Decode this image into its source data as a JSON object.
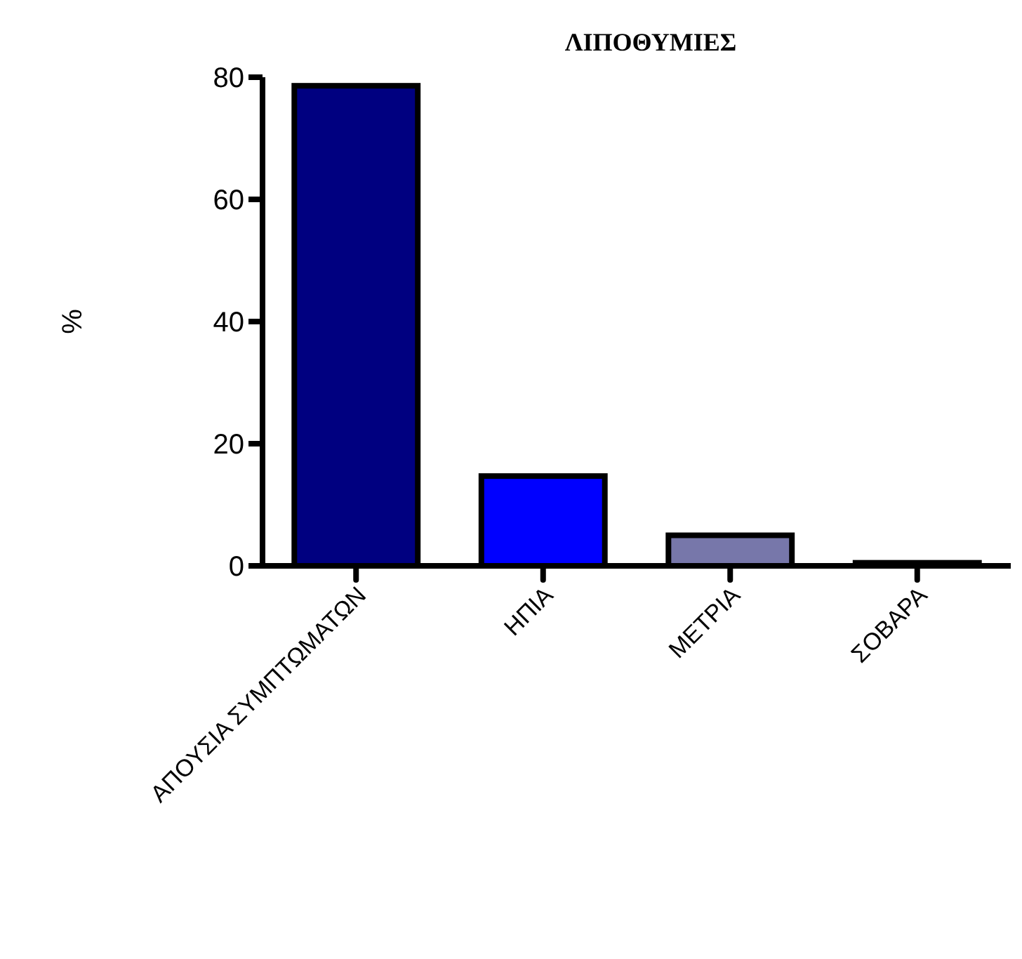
{
  "chart_data": {
    "type": "bar",
    "title": "ΛΙΠΟΘΥΜΙΕΣ",
    "ylabel": "%",
    "categories": [
      "ΑΠΟΥΣΙΑ ΣΥΜΠΤΩΜΑΤΩΝ",
      "ΗΠΙΑ",
      "ΜΕΤΡΙΑ",
      "ΣΟΒΑΡΑ"
    ],
    "values": [
      78.6,
      14.7,
      5,
      0.5
    ],
    "colors": [
      "#000080",
      "#0000ff",
      "#7777aa",
      "#000000"
    ],
    "ylim": [
      0,
      80
    ],
    "yticks": [
      0,
      20,
      40,
      60,
      80
    ],
    "grid": false
  }
}
